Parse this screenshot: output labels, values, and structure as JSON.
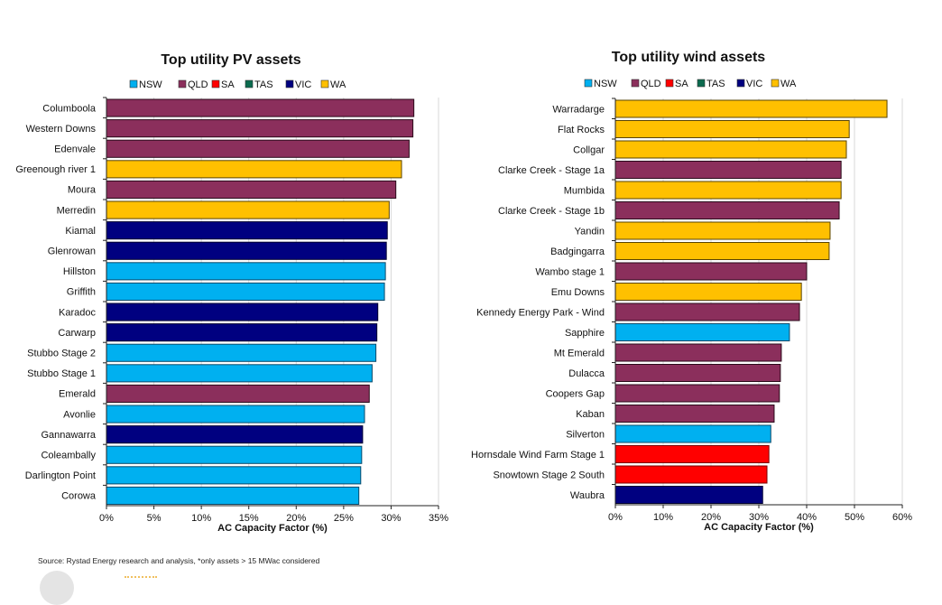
{
  "legend": {
    "regions": [
      {
        "name": "NSW",
        "color": "#00B0F0"
      },
      {
        "name": "QLD",
        "color": "#8B2F5C"
      },
      {
        "name": "SA",
        "color": "#FF0000"
      },
      {
        "name": "TAS",
        "color": "#0B6B4F"
      },
      {
        "name": "VIC",
        "color": "#000080"
      },
      {
        "name": "WA",
        "color": "#FFC000"
      }
    ]
  },
  "chart_data": [
    {
      "type": "bar",
      "orientation": "horizontal",
      "title": "Top utility PV assets",
      "xlabel": "AC Capacity Factor (%)",
      "ylabel": "",
      "xlim": [
        0,
        35
      ],
      "xticks": [
        "0%",
        "5%",
        "10%",
        "15%",
        "20%",
        "25%",
        "30%",
        "35%"
      ],
      "tick_values": [
        0,
        5,
        10,
        15,
        20,
        25,
        30,
        35
      ],
      "grid": true,
      "legend_position": "top",
      "categories": [
        "Columboola",
        "Western Downs",
        "Edenvale",
        "Greenough river 1",
        "Moura",
        "Merredin",
        "Kiamal",
        "Glenrowan",
        "Hillston",
        "Griffith",
        "Karadoc",
        "Carwarp",
        "Stubbo Stage 2",
        "Stubbo Stage 1",
        "Emerald",
        "Avonlie",
        "Gannawarra",
        "Coleambally",
        "Darlington Point",
        "Corowa"
      ],
      "values": [
        32.4,
        32.3,
        31.9,
        31.1,
        30.5,
        29.8,
        29.6,
        29.5,
        29.4,
        29.3,
        28.6,
        28.5,
        28.4,
        28.0,
        27.7,
        27.2,
        27.0,
        26.9,
        26.8,
        26.6
      ],
      "regions": [
        "QLD",
        "QLD",
        "QLD",
        "WA",
        "QLD",
        "WA",
        "VIC",
        "VIC",
        "NSW",
        "NSW",
        "VIC",
        "VIC",
        "NSW",
        "NSW",
        "QLD",
        "NSW",
        "VIC",
        "NSW",
        "NSW",
        "NSW"
      ]
    },
    {
      "type": "bar",
      "orientation": "horizontal",
      "title": "Top utility wind assets",
      "xlabel": "AC Capacity Factor (%)",
      "ylabel": "",
      "xlim": [
        0,
        60
      ],
      "xticks": [
        "0%",
        "10%",
        "20%",
        "30%",
        "40%",
        "50%",
        "60%"
      ],
      "tick_values": [
        0,
        10,
        20,
        30,
        40,
        50,
        60
      ],
      "grid": true,
      "legend_position": "top",
      "categories": [
        "Warradarge",
        "Flat Rocks",
        "Collgar",
        "Clarke Creek - Stage 1a",
        "Mumbida",
        "Clarke Creek - Stage 1b",
        "Yandin",
        "Badgingarra",
        "Wambo stage 1",
        "Emu Downs",
        "Kennedy Energy Park - Wind",
        "Sapphire",
        "Mt Emerald",
        "Dulacca",
        "Coopers Gap",
        "Kaban",
        "Silverton",
        "Hornsdale Wind Farm Stage 1",
        "Snowtown Stage 2 South",
        "Waubra"
      ],
      "values": [
        56.8,
        48.9,
        48.3,
        47.2,
        47.2,
        46.8,
        44.9,
        44.7,
        40.0,
        38.9,
        38.5,
        36.4,
        34.7,
        34.5,
        34.3,
        33.2,
        32.5,
        32.1,
        31.7,
        30.8
      ],
      "regions": [
        "WA",
        "WA",
        "WA",
        "QLD",
        "WA",
        "QLD",
        "WA",
        "WA",
        "QLD",
        "WA",
        "QLD",
        "NSW",
        "QLD",
        "QLD",
        "QLD",
        "QLD",
        "NSW",
        "SA",
        "SA",
        "VIC"
      ]
    }
  ],
  "footer": {
    "source": "Source: Rystad Energy research and analysis, *only assets > 15 MWac considered"
  }
}
